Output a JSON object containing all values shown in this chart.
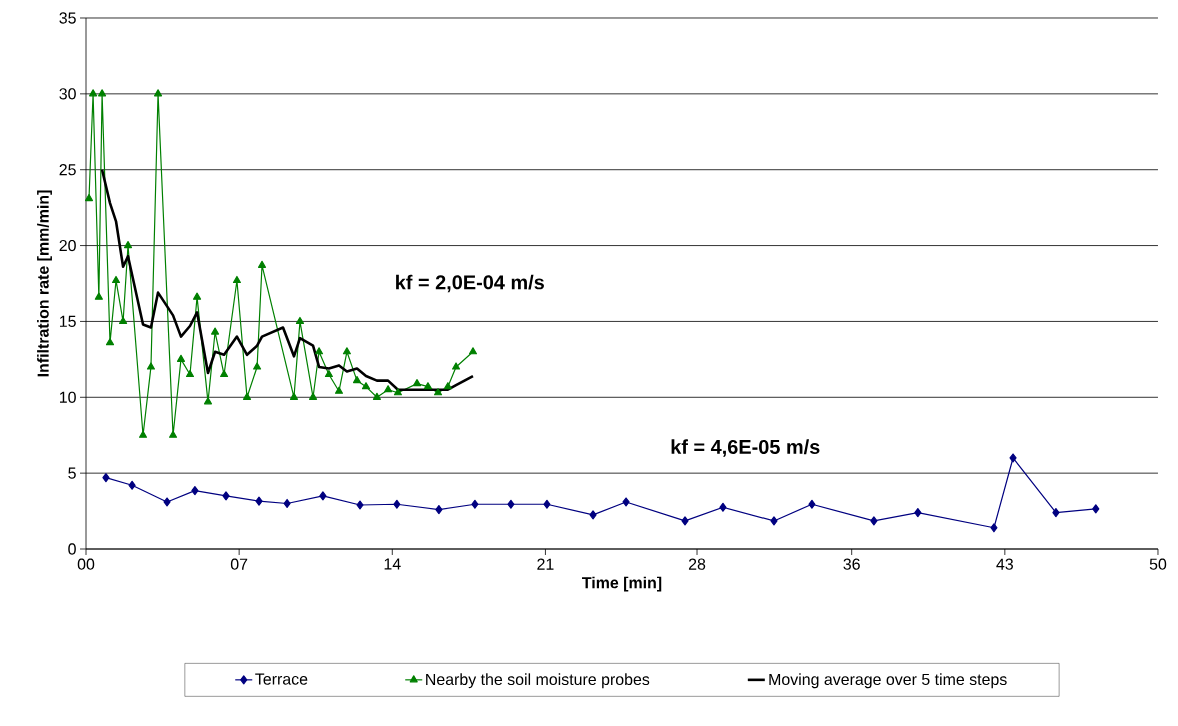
{
  "chart_data": {
    "type": "line",
    "xlabel": "Time [min]",
    "ylabel": "Infiltration rate [mm/min]",
    "annotations": [
      "kf = 2,0E-04 m/s",
      "kf = 4,6E-05 m/s"
    ],
    "xlim": [
      0,
      50
    ],
    "ylim": [
      0,
      35
    ],
    "xticks": [
      {
        "value": 0,
        "label": "00"
      },
      {
        "value": 7.143,
        "label": "07"
      },
      {
        "value": 14.286,
        "label": "14"
      },
      {
        "value": 21.429,
        "label": "21"
      },
      {
        "value": 28.5,
        "label": "28"
      },
      {
        "value": 35.714,
        "label": "36"
      },
      {
        "value": 42.857,
        "label": "43"
      },
      {
        "value": 50,
        "label": "50"
      }
    ],
    "yticks": [
      0,
      5,
      10,
      15,
      20,
      25,
      30,
      35
    ],
    "grid": "y",
    "legend": "bottom",
    "series": [
      {
        "name": "Terrace",
        "color": "#000080",
        "marker": "diamond",
        "x": [
          0.93,
          2.15,
          3.78,
          5.08,
          6.53,
          8.07,
          9.38,
          11.05,
          12.78,
          14.5,
          16.46,
          18.14,
          19.82,
          21.5,
          23.65,
          25.19,
          27.94,
          29.71,
          32.09,
          33.86,
          36.75,
          38.8,
          42.35,
          43.24,
          45.24,
          47.1
        ],
        "values": [
          4.7,
          4.2,
          3.1,
          3.85,
          3.5,
          3.15,
          3.0,
          3.5,
          2.9,
          2.95,
          2.6,
          2.95,
          2.95,
          2.95,
          2.25,
          3.1,
          1.85,
          2.75,
          1.85,
          2.95,
          1.85,
          2.4,
          1.4,
          6.0,
          2.4,
          2.65
        ]
      },
      {
        "name": "Nearby the soil moisture probes",
        "color": "#008000",
        "marker": "triangle",
        "x": [
          0.14,
          0.33,
          0.6,
          0.75,
          1.12,
          1.4,
          1.73,
          1.96,
          2.66,
          3.03,
          3.36,
          4.06,
          4.43,
          4.85,
          5.18,
          5.69,
          6.02,
          6.44,
          7.04,
          7.51,
          7.98,
          8.21,
          9.7,
          9.98,
          10.59,
          10.87,
          11.33,
          11.8,
          12.17,
          12.64,
          13.06,
          13.57,
          14.09,
          14.55,
          15.44,
          15.95,
          16.42,
          16.88,
          17.26,
          18.05
        ],
        "values": [
          23.1,
          30,
          16.6,
          30,
          13.6,
          17.7,
          15,
          20,
          7.5,
          12,
          30,
          7.5,
          12.5,
          11.5,
          16.6,
          9.7,
          14.3,
          11.5,
          17.7,
          10,
          12,
          18.7,
          10,
          15,
          10,
          13,
          11.5,
          10.4,
          13,
          11.1,
          10.7,
          10,
          10.5,
          10.3,
          10.9,
          10.7,
          10.3,
          10.7,
          12,
          13
        ]
      },
      {
        "name": "Moving average over 5 time steps",
        "color": "#000000",
        "marker": "none",
        "x": [
          0.75,
          1.12,
          1.4,
          1.73,
          1.96,
          2.66,
          3.03,
          3.36,
          4.06,
          4.43,
          4.85,
          5.18,
          5.69,
          6.02,
          6.44,
          7.04,
          7.51,
          7.98,
          8.21,
          9.19,
          9.7,
          9.98,
          10.59,
          10.87,
          11.33,
          11.8,
          12.17,
          12.64,
          13.06,
          13.57,
          14.09,
          14.55,
          15.44,
          16.88,
          17.26,
          18.05
        ],
        "values": [
          25,
          22.8,
          21.6,
          18.6,
          19.3,
          14.8,
          14.6,
          16.9,
          15.4,
          14,
          14.7,
          15.6,
          11.6,
          13,
          12.8,
          14,
          12.8,
          13.4,
          14,
          14.6,
          12.7,
          13.9,
          13.4,
          12,
          11.9,
          12.1,
          11.7,
          11.9,
          11.4,
          11.1,
          11.1,
          10.5,
          10.5,
          10.5,
          10.8,
          11.4
        ]
      }
    ]
  }
}
